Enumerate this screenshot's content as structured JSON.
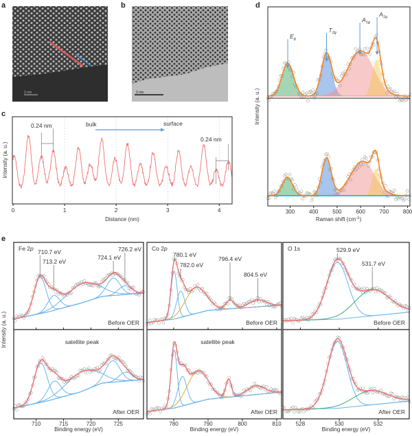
{
  "panel_labels": {
    "a": "a",
    "b": "b",
    "c": "c",
    "d": "d",
    "e": "e"
  },
  "images": {
    "a": {
      "scale_bar": "2 nm",
      "line_colors": [
        "#e05a5a",
        "#4a8fd8"
      ]
    },
    "b": {
      "scale_bar": "2 nm"
    }
  },
  "chart_data": [
    {
      "id": "c",
      "type": "line",
      "xlabel": "Distance (nm)",
      "ylabel": "Intensity (a. u.)",
      "xlim": [
        0,
        4.25
      ],
      "xticks": [
        0,
        1,
        2,
        3,
        4
      ],
      "grid": "vertical dashed",
      "color": "#f07070",
      "peaks_nm": [
        0.02,
        0.3,
        0.55,
        0.78,
        1.02,
        1.27,
        1.5,
        1.72,
        1.98,
        2.22,
        2.47,
        2.72,
        2.97,
        3.21,
        3.45,
        3.7,
        3.94,
        4.18
      ],
      "peak_intensity": [
        0.55,
        0.87,
        0.55,
        0.63,
        0.36,
        0.68,
        0.43,
        0.82,
        0.5,
        0.74,
        0.43,
        0.6,
        0.4,
        0.62,
        0.38,
        0.73,
        0.33,
        0.47
      ],
      "annotations": {
        "spacing_left": "0.24 nm",
        "spacing_right": "0.24 nm",
        "from": "bulk",
        "to": "surface"
      },
      "arrow_color": "#5b9bd5"
    },
    {
      "id": "d",
      "type": "scatter+fit",
      "xlabel": "Raman shift (cm",
      "xlabel_sup": "-1",
      "xlabel_end": ")",
      "ylabel": "Intensity (a. u.)",
      "xlim": [
        205,
        810
      ],
      "xticks": [
        300,
        400,
        500,
        600,
        700,
        800
      ],
      "mode_labels": [
        {
          "main": "E",
          "sub": "g",
          "x": 290
        },
        {
          "main": "T",
          "sub": "2g",
          "x": 455
        },
        {
          "main": "A",
          "sub": "1g",
          "x": 597
        },
        {
          "main": "A",
          "sub": "1g",
          "x": 670
        }
      ],
      "fit_color": "#f58220",
      "panels": [
        {
          "components": [
            {
              "center": 290,
              "height": 0.39,
              "sigma": 25,
              "color": "#3aa35a"
            },
            {
              "center": 455,
              "height": 0.5,
              "sigma": 22,
              "color": "#3d7fd9"
            },
            {
              "center": 600,
              "height": 0.54,
              "sigma": 55,
              "color": "#f08a8a"
            },
            {
              "center": 668,
              "height": 0.43,
              "sigma": 18,
              "color": "#f5c84a"
            }
          ],
          "baseline_color": "#f0a0a0"
        },
        {
          "components": [
            {
              "center": 288,
              "height": 0.22,
              "sigma": 22,
              "color": "#3aa35a"
            },
            {
              "center": 455,
              "height": 0.45,
              "sigma": 20,
              "color": "#3d7fd9"
            },
            {
              "center": 608,
              "height": 0.41,
              "sigma": 50,
              "color": "#f08a8a"
            },
            {
              "center": 665,
              "height": 0.32,
              "sigma": 15,
              "color": "#f5c84a"
            }
          ],
          "baseline_color": "#2ec4c4"
        }
      ]
    },
    {
      "id": "e",
      "type": "scatter+fit",
      "ylabel": "Intensity (a. u.)",
      "sum_color": "#f07070",
      "panels": [
        {
          "title_main": "Fe 2",
          "title_ital": "p",
          "xlabel": "Binding energy (eV)",
          "xlim": [
            705.9,
            729.6
          ],
          "xticks": [
            710,
            715,
            720,
            725
          ],
          "before": {
            "label": "Before OER",
            "background": [
              [
                705.9,
                0.12
              ],
              [
                712,
                0.2
              ],
              [
                718,
                0.3
              ],
              [
                722,
                0.38
              ],
              [
                729.6,
                0.42
              ]
            ],
            "components": [
              {
                "center": 710.7,
                "height": 0.42,
                "sigma": 1.1,
                "color": "#6ab4f0"
              },
              {
                "center": 713.2,
                "height": 0.17,
                "sigma": 1.1,
                "color": "#6ab4f0"
              },
              {
                "center": 718.5,
                "height": 0.22,
                "sigma": 3.0,
                "color": "#6ab4f0"
              },
              {
                "center": 724.1,
                "height": 0.2,
                "sigma": 1.2,
                "color": "#6ab4f0"
              },
              {
                "center": 726.2,
                "height": 0.1,
                "sigma": 1.2,
                "color": "#6ab4f0"
              }
            ],
            "peak_labels": [
              "710.7 eV",
              "713.2 eV",
              "724.1 eV",
              "726.2 eV"
            ],
            "peak_label_x": [
              710.7,
              713.2,
              724.1,
              726.2
            ]
          },
          "after": {
            "label": "After OER",
            "note": "satellite peak",
            "background": [
              [
                705.9,
                0.12
              ],
              [
                712,
                0.2
              ],
              [
                718,
                0.3
              ],
              [
                722,
                0.4
              ],
              [
                729.6,
                0.44
              ]
            ],
            "components": [
              {
                "center": 710.8,
                "height": 0.44,
                "sigma": 1.2,
                "color": "#6ab4f0"
              },
              {
                "center": 713.3,
                "height": 0.2,
                "sigma": 1.2,
                "color": "#6ab4f0"
              },
              {
                "center": 718.5,
                "height": 0.22,
                "sigma": 3.0,
                "color": "#6ab4f0"
              },
              {
                "center": 724.0,
                "height": 0.24,
                "sigma": 1.3,
                "color": "#6ab4f0"
              },
              {
                "center": 726.3,
                "height": 0.1,
                "sigma": 1.2,
                "color": "#6ab4f0"
              }
            ]
          }
        },
        {
          "title_main": "Co 2",
          "title_ital": "p",
          "xlabel": "Binding energy (eV)",
          "xlim": [
            772.2,
            811.4
          ],
          "xticks": [
            780,
            790,
            800,
            810
          ],
          "before": {
            "label": "Before OER",
            "background": [
              [
                772.2,
                0.08
              ],
              [
                780,
                0.12
              ],
              [
                790,
                0.22
              ],
              [
                811.4,
                0.28
              ]
            ],
            "components": [
              {
                "center": 780.1,
                "height": 0.55,
                "sigma": 0.9,
                "color": "#6ab4f0"
              },
              {
                "center": 782.0,
                "height": 0.3,
                "sigma": 1.2,
                "color": "#6ab4f0"
              },
              {
                "center": 786.5,
                "height": 0.3,
                "sigma": 3.0,
                "color": "#e8a82a"
              },
              {
                "center": 796.4,
                "height": 0.1,
                "sigma": 1.2,
                "color": "#6ab4f0"
              },
              {
                "center": 804.5,
                "height": 0.08,
                "sigma": 2.5,
                "color": "#6ab4f0"
              }
            ],
            "peak_labels": [
              "780.1 eV",
              "782.0 eV",
              "796.4 eV",
              "804.5 eV"
            ],
            "peak_label_x": [
              780.1,
              782.0,
              796.4,
              804.5
            ]
          },
          "after": {
            "label": "After OER",
            "note": "satellite peak",
            "background": [
              [
                772.2,
                0.08
              ],
              [
                780,
                0.12
              ],
              [
                790,
                0.22
              ],
              [
                811.4,
                0.3
              ]
            ],
            "components": [
              {
                "center": 780.1,
                "height": 0.65,
                "sigma": 0.9,
                "color": "#6ab4f0"
              },
              {
                "center": 782.5,
                "height": 0.33,
                "sigma": 1.3,
                "color": "#6ab4f0"
              },
              {
                "center": 787.0,
                "height": 0.35,
                "sigma": 3.0,
                "color": "#e8a82a"
              },
              {
                "center": 796.0,
                "height": 0.2,
                "sigma": 0.8,
                "color": "#6ab4f0"
              },
              {
                "center": 804.0,
                "height": 0.1,
                "sigma": 2.5,
                "color": "#6ab4f0"
              }
            ]
          }
        },
        {
          "title_main": "O 1s",
          "title_ital": "",
          "xlabel": "Binding energy (eV)",
          "xlim": [
            527.1,
            533.6
          ],
          "xticks": [
            528,
            530,
            532
          ],
          "before": {
            "label": "Before OER",
            "background": [
              [
                527.1,
                0.1
              ],
              [
                530,
                0.12
              ],
              [
                533.6,
                0.2
              ]
            ],
            "components": [
              {
                "center": 529.9,
                "height": 0.65,
                "sigma": 0.55,
                "color": "#6ab4f0"
              },
              {
                "center": 531.7,
                "height": 0.3,
                "sigma": 0.9,
                "color": "#3aa870"
              }
            ],
            "peak_labels": [
              "529.9 eV",
              "531.7 eV"
            ],
            "peak_label_x": [
              529.9,
              531.7
            ]
          },
          "after": {
            "label": "After OER",
            "background": [
              [
                527.1,
                0.1
              ],
              [
                530,
                0.12
              ],
              [
                533.6,
                0.2
              ]
            ],
            "components": [
              {
                "center": 529.9,
                "height": 0.75,
                "sigma": 0.5,
                "color": "#6ab4f0"
              },
              {
                "center": 531.6,
                "height": 0.16,
                "sigma": 0.9,
                "color": "#3aa870"
              }
            ]
          }
        }
      ]
    }
  ]
}
